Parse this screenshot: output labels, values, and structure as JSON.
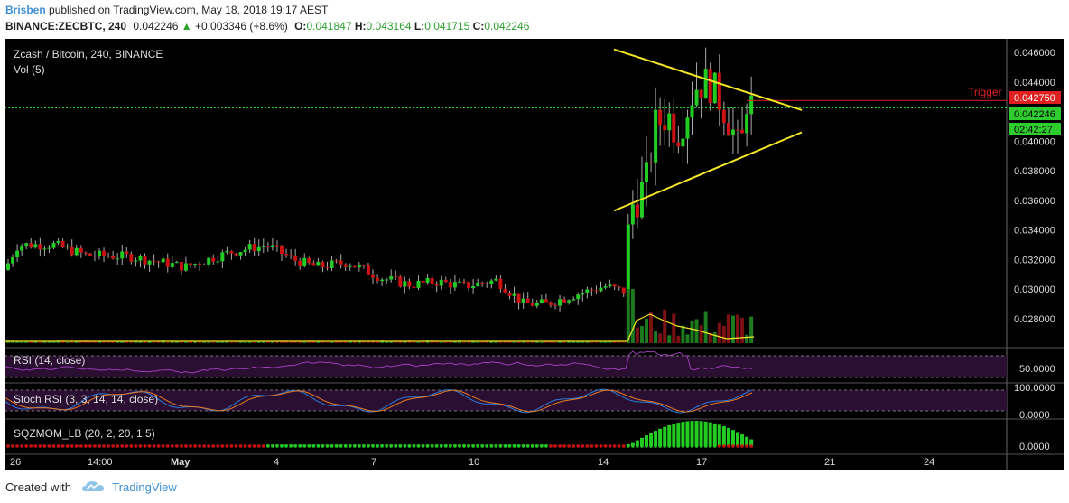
{
  "header": {
    "author": "Brisben",
    "published_text": "published on TradingView.com, May 18, 2018 19:17 AEST",
    "symbol": "BINANCE:ZECBTC, 240",
    "last": "0.042246",
    "change": "+0.003346 (+8.6%)",
    "open_label": "O:",
    "open": "0.041847",
    "high_label": "H:",
    "high": "0.043164",
    "low_label": "L:",
    "low": "0.041715",
    "close_label": "C:",
    "close": "0.042246"
  },
  "chart_data": {
    "type": "candlestick",
    "title": "Zcash / Bitcoin, 240, BINANCE",
    "y_ticks": [
      "0.046000",
      "0.044000",
      "0.042000",
      "0.040000",
      "0.038000",
      "0.036000",
      "0.034000",
      "0.032000",
      "0.030000",
      "0.028000"
    ],
    "ylim": [
      0.0264,
      0.0473
    ],
    "x_ticks": [
      "26",
      "14:00",
      "May",
      "4",
      "7",
      "10",
      "14",
      "17",
      "21",
      "24"
    ],
    "price_badges": {
      "trigger_price": "0.042750",
      "last_price": "0.042246",
      "countdown": "02:42:27"
    },
    "trigger_label": "Trigger",
    "trigger_level": 0.04275,
    "last_level": 0.042246,
    "triangle": {
      "upper": [
        [
          0,
          0.0462
        ],
        [
          1,
          0.0421
        ]
      ],
      "lower": [
        [
          0,
          0.0353
        ],
        [
          1,
          0.0406
        ]
      ]
    },
    "pane_labels": {
      "vol": "Vol (5)",
      "rsi": "RSI (14, close)",
      "stoch": "Stoch RSI (3, 3, 14, 14, close)",
      "sqz": "SQZMOM_LB (20, 2, 20, 1.5)"
    },
    "pane_ticks": {
      "rsi": "50.0000",
      "stoch_top": "100.0000",
      "stoch_bottom": "0.0000",
      "sqz": "0.0000"
    }
  },
  "footer": {
    "created_with": "Created with",
    "brand": "TradingView"
  },
  "colors": {
    "up": "#22cc22",
    "down": "#cc1111",
    "trend": "#f5e625",
    "trigger": "#e02020",
    "lastline": "#2ecc2e",
    "rsi": "#9a3fb5",
    "stoch_k": "#2d7bd6",
    "stoch_d": "#e57b22"
  }
}
